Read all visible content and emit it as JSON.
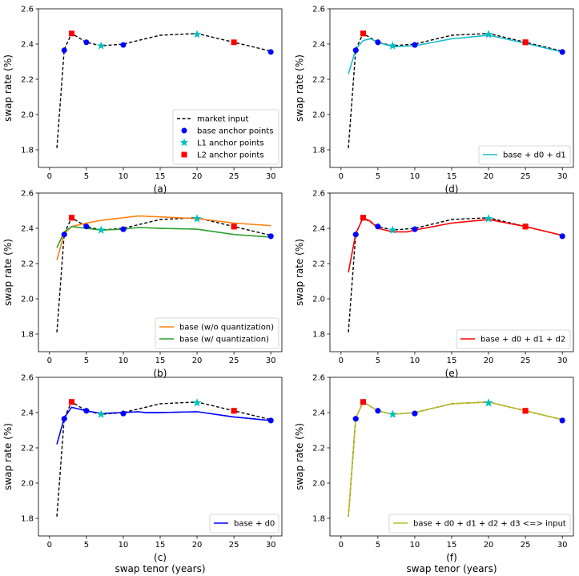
{
  "figure": {
    "ylabel": "swap rate (%)",
    "xlabel": "swap tenor (years)",
    "xticks": [
      0,
      5,
      10,
      15,
      20,
      25,
      30
    ],
    "yticks": [
      1.8,
      2.0,
      2.2,
      2.4,
      2.6
    ]
  },
  "colors": {
    "market": "#000000",
    "base": "#0000ff",
    "L1": "#00bfbf",
    "L2": "#ff0000",
    "orange": "#ff7f0e",
    "green": "#2ca02c",
    "cyan": "#17becf",
    "olive": "#bcbd22"
  },
  "chart_data": [
    {
      "type": "line",
      "caption": "(a)",
      "xlim": [
        0,
        30
      ],
      "ylim": [
        1.7,
        2.6
      ],
      "legend_placement": "lower-right",
      "series": [
        {
          "name": "market input",
          "style": "dashed",
          "color": "#000000",
          "x": [
            1,
            2,
            3,
            5,
            7,
            10,
            12,
            15,
            20,
            25,
            30
          ],
          "y": [
            1.81,
            2.37,
            2.46,
            2.41,
            2.39,
            2.4,
            2.42,
            2.45,
            2.46,
            2.41,
            2.36
          ]
        },
        {
          "name": "base anchor points",
          "marker": "circle",
          "color": "#0000ff",
          "x": [
            2,
            5,
            10,
            30
          ],
          "y": [
            2.365,
            2.41,
            2.395,
            2.355
          ]
        },
        {
          "name": "L1 anchor points",
          "marker": "star",
          "color": "#00bfbf",
          "x": [
            7,
            20
          ],
          "y": [
            2.39,
            2.455
          ]
        },
        {
          "name": "L2 anchor points",
          "marker": "square",
          "color": "#ff0000",
          "x": [
            3,
            25
          ],
          "y": [
            2.46,
            2.41
          ]
        }
      ]
    },
    {
      "type": "line",
      "caption": "(d)",
      "xlim": [
        0,
        30
      ],
      "ylim": [
        1.7,
        2.6
      ],
      "legend_placement": "lower-right",
      "series": [
        {
          "name": "base + d0 + d1",
          "color": "#17becf",
          "x": [
            1,
            2,
            3,
            4,
            5,
            7,
            10,
            15,
            20,
            25,
            30
          ],
          "y": [
            2.23,
            2.37,
            2.42,
            2.43,
            2.41,
            2.385,
            2.39,
            2.43,
            2.45,
            2.405,
            2.355
          ]
        }
      ]
    },
    {
      "type": "line",
      "caption": "(b)",
      "xlim": [
        0,
        30
      ],
      "ylim": [
        1.7,
        2.6
      ],
      "legend_placement": "lower-right",
      "series": [
        {
          "name": "base (w/o quantization)",
          "color": "#ff7f0e",
          "x": [
            1,
            2,
            3,
            5,
            7,
            10,
            12,
            15,
            20,
            25,
            30
          ],
          "y": [
            2.22,
            2.37,
            2.41,
            2.43,
            2.445,
            2.46,
            2.47,
            2.465,
            2.455,
            2.43,
            2.415
          ]
        },
        {
          "name": "base (w/ quantization)",
          "color": "#2ca02c",
          "x": [
            1,
            2,
            3,
            5,
            7,
            10,
            12,
            15,
            20,
            25,
            30
          ],
          "y": [
            2.29,
            2.38,
            2.41,
            2.4,
            2.39,
            2.395,
            2.405,
            2.4,
            2.395,
            2.365,
            2.35
          ]
        }
      ]
    },
    {
      "type": "line",
      "caption": "(e)",
      "xlim": [
        0,
        30
      ],
      "ylim": [
        1.7,
        2.6
      ],
      "legend_placement": "lower-right",
      "series": [
        {
          "name": "base + d0 + d1 + d2",
          "color": "#ff0000",
          "x": [
            1,
            2,
            3,
            4,
            5,
            7,
            9,
            10,
            15,
            20,
            25,
            30
          ],
          "y": [
            2.15,
            2.37,
            2.46,
            2.44,
            2.4,
            2.38,
            2.38,
            2.39,
            2.43,
            2.45,
            2.41,
            2.36
          ]
        }
      ]
    },
    {
      "type": "line",
      "caption": "(c)",
      "xlim": [
        0,
        30
      ],
      "ylim": [
        1.7,
        2.6
      ],
      "legend_placement": "lower-right",
      "series": [
        {
          "name": "base + d0",
          "color": "#0000ff",
          "x": [
            1,
            2,
            3,
            5,
            7,
            10,
            12,
            13,
            15,
            20,
            25,
            30
          ],
          "y": [
            2.22,
            2.37,
            2.43,
            2.41,
            2.395,
            2.4,
            2.405,
            2.4,
            2.4,
            2.405,
            2.375,
            2.355
          ]
        }
      ]
    },
    {
      "type": "line",
      "caption": "(f)",
      "xlim": [
        0,
        30
      ],
      "ylim": [
        1.7,
        2.6
      ],
      "legend_placement": "lower-right",
      "series": [
        {
          "name": "base + d0 + d1 + d2 + d3 <=> input",
          "color": "#bcbd22",
          "x": [
            1,
            2,
            3,
            5,
            7,
            10,
            12,
            15,
            20,
            25,
            30
          ],
          "y": [
            1.81,
            2.37,
            2.46,
            2.41,
            2.39,
            2.4,
            2.42,
            2.45,
            2.46,
            2.41,
            2.36
          ]
        }
      ]
    }
  ]
}
